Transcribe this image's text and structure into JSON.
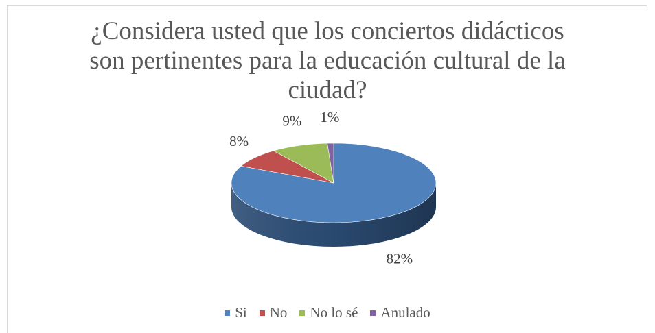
{
  "chart_data": {
    "type": "pie",
    "title_lines": [
      "¿Considera usted que los conciertos didácticos",
      "son pertinentes para la educación cultural de la",
      "ciudad?"
    ],
    "categories": [
      "Si",
      "No",
      "No lo sé",
      "Anulado"
    ],
    "values": [
      82,
      8,
      9,
      1
    ],
    "value_labels": [
      "82%",
      "8%",
      "9%",
      "1%"
    ],
    "colors": [
      "#4f81bd",
      "#c0504d",
      "#9bbb59",
      "#8064a2"
    ],
    "side_colors": [
      "#2c4d75",
      "#772c2a",
      "#5f7530",
      "#4d3b62"
    ],
    "legend_position": "bottom",
    "style": "3d"
  }
}
